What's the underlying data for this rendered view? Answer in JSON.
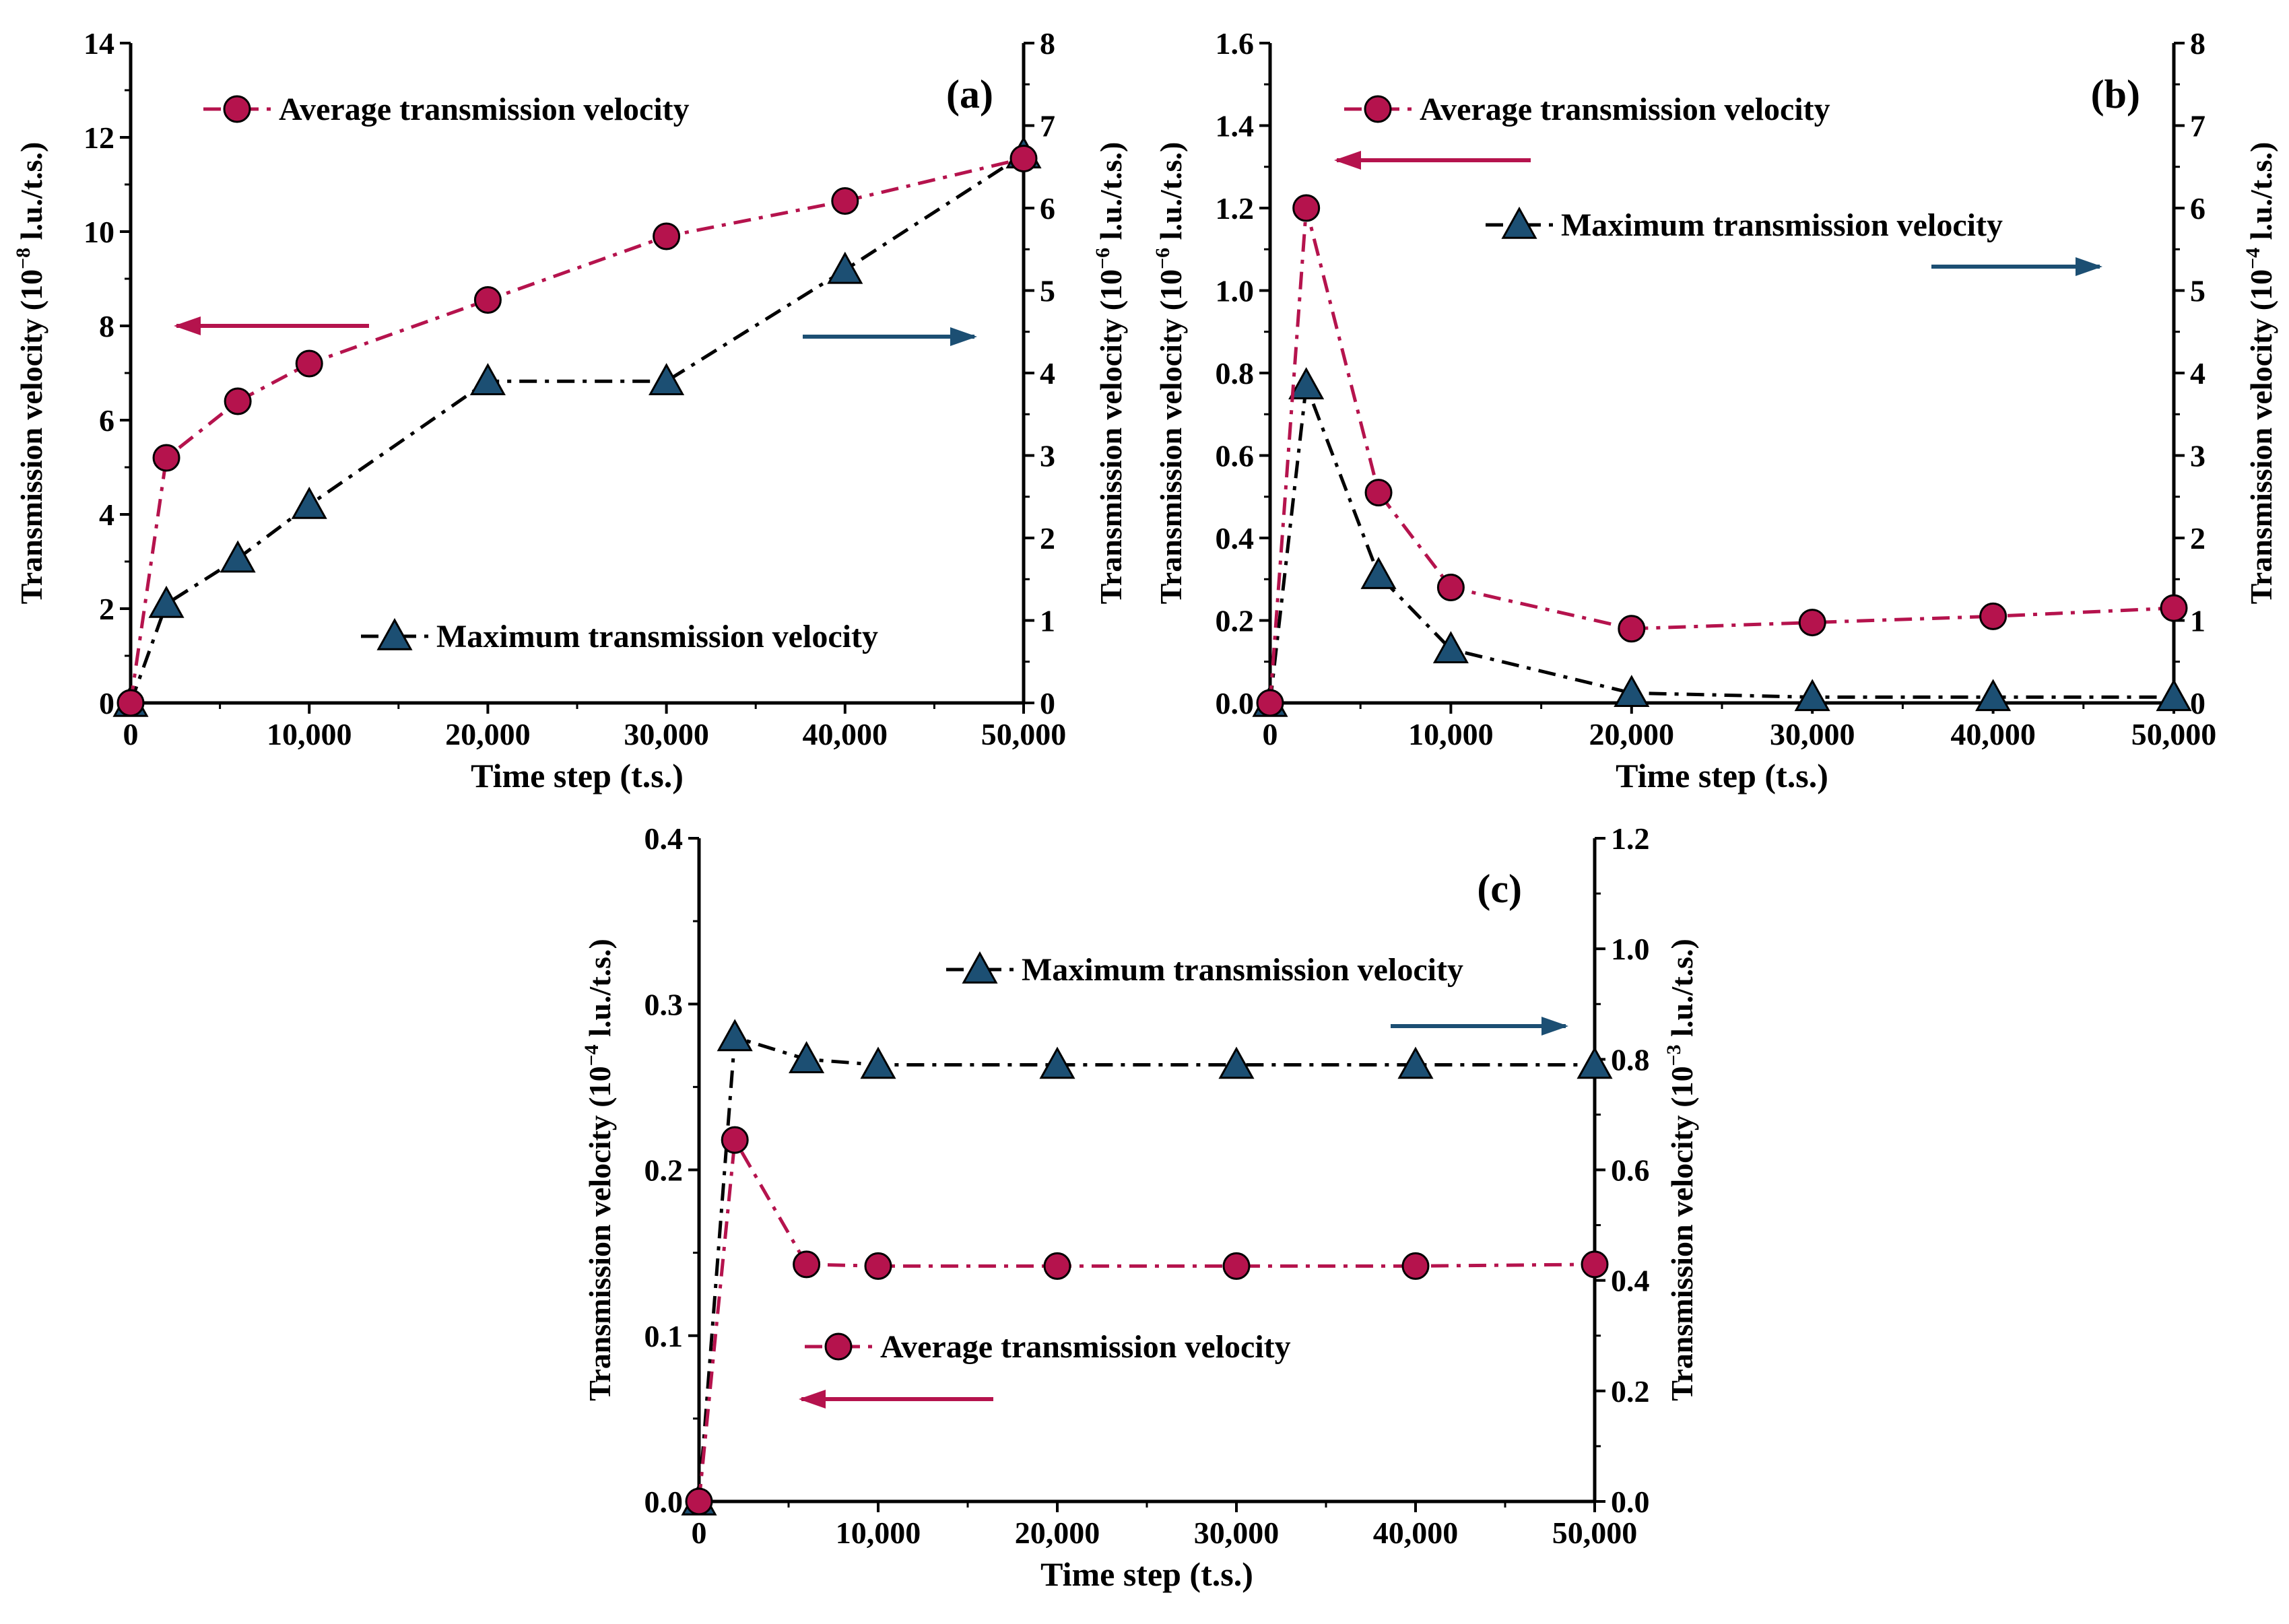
{
  "colors": {
    "average": "#b5134d",
    "maximum": "#1c4f73",
    "axis": "#000000",
    "dash_max": "#000000"
  },
  "icons": {
    "average_marker": "circle-marker-icon",
    "maximum_marker": "triangle-marker-icon",
    "left_arrow": "arrow-left-icon",
    "right_arrow": "arrow-right-icon"
  },
  "chart_data": [
    {
      "type": "line",
      "panel_label": "(a)",
      "xlabel": "Time step (t.s.)",
      "ylabel_left": {
        "pre": "Transmission velocity (10",
        "exp": "−8",
        "post": " l.u./t.s.)"
      },
      "ylabel_right": {
        "pre": "Transmission velocity (10",
        "exp": "−6",
        "post": " l.u./t.s.)"
      },
      "xlim": [
        0,
        50000
      ],
      "xticks": [
        0,
        10000,
        20000,
        30000,
        40000,
        50000
      ],
      "xtick_labels": [
        "0",
        "10,000",
        "20,000",
        "30,000",
        "40,000",
        "50,000"
      ],
      "ylim_left": [
        0,
        14
      ],
      "yticks_left": [
        0,
        2,
        4,
        6,
        8,
        10,
        12,
        14
      ],
      "ytick_labels_left": [
        "0",
        "2",
        "4",
        "6",
        "8",
        "10",
        "12",
        "14"
      ],
      "ylim_right": [
        0,
        8
      ],
      "yticks_right": [
        0,
        1,
        2,
        3,
        4,
        5,
        6,
        7,
        8
      ],
      "ytick_labels_right": [
        "0",
        "1",
        "2",
        "3",
        "4",
        "5",
        "6",
        "7",
        "8"
      ],
      "x": [
        0,
        2000,
        6000,
        10000,
        20000,
        30000,
        40000,
        50000
      ],
      "series": [
        {
          "name": "Average transmission velocity",
          "axis": "left",
          "marker": "circle",
          "values": [
            0,
            5.2,
            6.4,
            7.2,
            8.55,
            9.9,
            10.65,
            11.55
          ]
        },
        {
          "name": "Maximum transmission velocity",
          "axis": "right",
          "marker": "triangle",
          "values": [
            0,
            1.2,
            1.75,
            2.4,
            3.9,
            3.9,
            5.25,
            6.65
          ]
        }
      ]
    },
    {
      "type": "line",
      "panel_label": "(b)",
      "xlabel": "Time step (t.s.)",
      "ylabel_left": {
        "pre": "Transmission velocity (10",
        "exp": "−6",
        "post": " l.u./t.s.)"
      },
      "ylabel_right": {
        "pre": "Transmission velocity (10",
        "exp": "−4",
        "post": " l.u./t.s.)"
      },
      "xlim": [
        0,
        50000
      ],
      "xticks": [
        0,
        10000,
        20000,
        30000,
        40000,
        50000
      ],
      "xtick_labels": [
        "0",
        "10,000",
        "20,000",
        "30,000",
        "40,000",
        "50,000"
      ],
      "ylim_left": [
        0,
        1.6
      ],
      "yticks_left": [
        0,
        0.2,
        0.4,
        0.6,
        0.8,
        1.0,
        1.2,
        1.4,
        1.6
      ],
      "ytick_labels_left": [
        "0.0",
        "0.2",
        "0.4",
        "0.6",
        "0.8",
        "1.0",
        "1.2",
        "1.4",
        "1.6"
      ],
      "ylim_right": [
        0,
        8
      ],
      "yticks_right": [
        0,
        1,
        2,
        3,
        4,
        5,
        6,
        7,
        8
      ],
      "ytick_labels_right": [
        "0",
        "1",
        "2",
        "3",
        "4",
        "5",
        "6",
        "7",
        "8"
      ],
      "x": [
        0,
        2000,
        6000,
        10000,
        20000,
        30000,
        40000,
        50000
      ],
      "series": [
        {
          "name": "Average transmission velocity",
          "axis": "left",
          "marker": "circle",
          "values": [
            0,
            1.2,
            0.51,
            0.28,
            0.18,
            0.195,
            0.21,
            0.23
          ]
        },
        {
          "name": "Maximum transmission velocity",
          "axis": "right",
          "marker": "triangle",
          "values": [
            0,
            3.85,
            1.55,
            0.65,
            0.12,
            0.07,
            0.07,
            0.07
          ]
        }
      ]
    },
    {
      "type": "line",
      "panel_label": "(c)",
      "xlabel": "Time step (t.s.)",
      "ylabel_left": {
        "pre": "Transmission velocity (10",
        "exp": "−4",
        "post": " l.u./t.s.)"
      },
      "ylabel_right": {
        "pre": "Transmission velocity (10",
        "exp": "−3",
        "post": " l.u./t.s.)"
      },
      "xlim": [
        0,
        50000
      ],
      "xticks": [
        0,
        10000,
        20000,
        30000,
        40000,
        50000
      ],
      "xtick_labels": [
        "0",
        "10,000",
        "20,000",
        "30,000",
        "40,000",
        "50,000"
      ],
      "ylim_left": [
        0,
        0.4
      ],
      "yticks_left": [
        0,
        0.1,
        0.2,
        0.3,
        0.4
      ],
      "ytick_labels_left": [
        "0.0",
        "0.1",
        "0.2",
        "0.3",
        "0.4"
      ],
      "ylim_right": [
        0,
        1.2
      ],
      "yticks_right": [
        0,
        0.2,
        0.4,
        0.6,
        0.8,
        1.0,
        1.2
      ],
      "ytick_labels_right": [
        "0.0",
        "0.2",
        "0.4",
        "0.6",
        "0.8",
        "1.0",
        "1.2"
      ],
      "x": [
        0,
        2000,
        6000,
        10000,
        20000,
        30000,
        40000,
        50000
      ],
      "series": [
        {
          "name": "Average transmission velocity",
          "axis": "left",
          "marker": "circle",
          "values": [
            0,
            0.218,
            0.143,
            0.142,
            0.142,
            0.142,
            0.142,
            0.143
          ]
        },
        {
          "name": "Maximum transmission velocity",
          "axis": "right",
          "marker": "triangle",
          "values": [
            0,
            0.84,
            0.8,
            0.79,
            0.79,
            0.79,
            0.79,
            0.79
          ]
        }
      ]
    }
  ]
}
